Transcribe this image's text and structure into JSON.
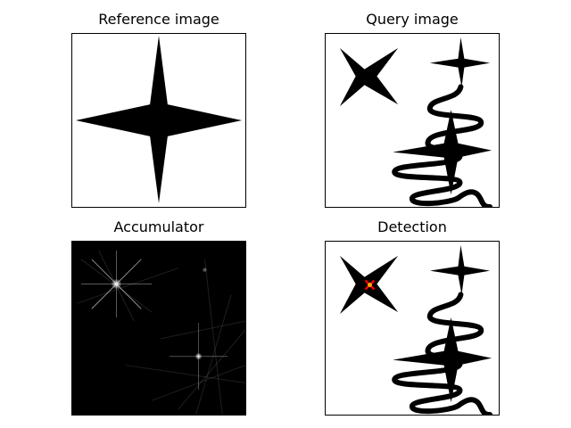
{
  "panels": {
    "reference": {
      "title": "Reference image"
    },
    "query": {
      "title": "Query image"
    },
    "accumulator": {
      "title": "Accumulator"
    },
    "detection": {
      "title": "Detection"
    }
  },
  "colors": {
    "shape": "#000000",
    "background": "#ffffff",
    "accumulator_background": "#000000",
    "marker_x": "#ff0000",
    "marker_dot": "#ffaa00"
  }
}
